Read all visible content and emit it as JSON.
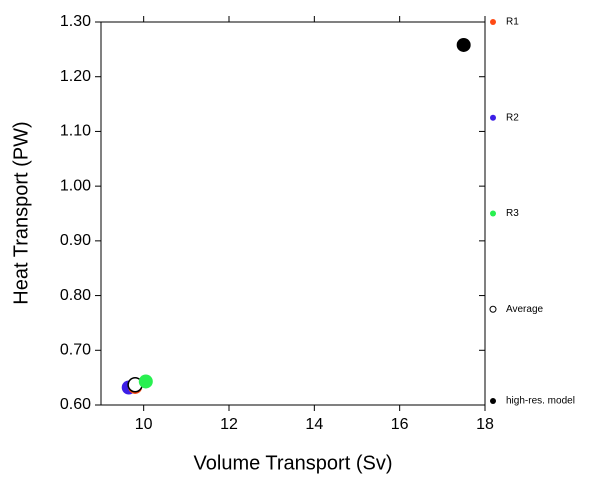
{
  "chart_data": {
    "type": "scatter",
    "xlabel": "Volume Transport (Sv)",
    "ylabel": "Heat Transport (PW)",
    "xlim": [
      9,
      18
    ],
    "xticks": [
      10,
      12,
      14,
      16,
      18
    ],
    "ylim": [
      0.6,
      1.3
    ],
    "yticks": [
      {
        "value": 0.6,
        "label": "0.60"
      },
      {
        "value": 0.7,
        "label": "0.70"
      },
      {
        "value": 0.8,
        "label": "0.80"
      },
      {
        "value": 0.9,
        "label": "0.90"
      },
      {
        "value": 1.0,
        "label": "1.00"
      },
      {
        "value": 1.1,
        "label": "1.10"
      },
      {
        "value": 1.2,
        "label": "1.20"
      },
      {
        "value": 1.3,
        "label": "1.30"
      }
    ],
    "legend": "right",
    "series": [
      {
        "name": "R1",
        "color": "#ff4a14",
        "filled": true,
        "x": [
          9.8
        ],
        "values": [
          0.633
        ]
      },
      {
        "name": "R2",
        "color": "#3c1ee6",
        "filled": true,
        "x": [
          9.65
        ],
        "values": [
          0.632
        ]
      },
      {
        "name": "R3",
        "color": "#28f050",
        "filled": true,
        "x": [
          10.05
        ],
        "values": [
          0.643
        ]
      },
      {
        "name": "Average",
        "color": "#000000",
        "filled": false,
        "x": [
          9.8
        ],
        "values": [
          0.637
        ]
      },
      {
        "name": "high-res. model",
        "color": "#000000",
        "filled": true,
        "x": [
          17.5
        ],
        "values": [
          1.258
        ]
      }
    ]
  }
}
